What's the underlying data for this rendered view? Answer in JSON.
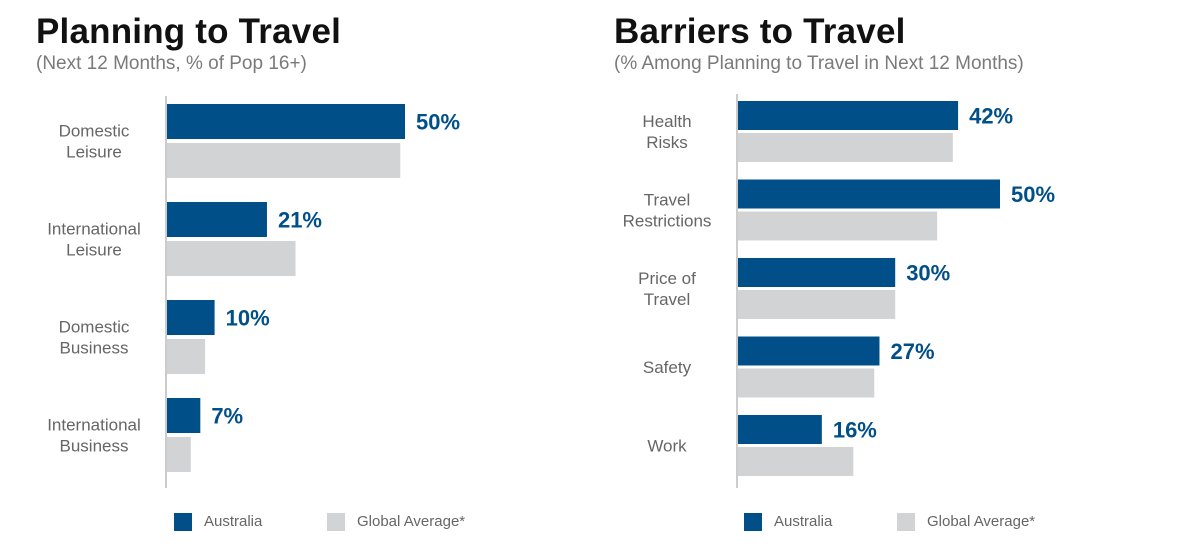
{
  "colors": {
    "australia": "#004f88",
    "global": "#d2d3d5",
    "axis": "#9a9a9a",
    "value_label": "#004f88"
  },
  "chart_data": [
    {
      "type": "bar",
      "orientation": "horizontal",
      "title": "Planning to Travel",
      "subtitle": "(Next 12 Months, % of Pop 16+)",
      "categories": [
        [
          "Domestic",
          "Leisure"
        ],
        [
          "International",
          "Leisure"
        ],
        [
          "Domestic",
          "Business"
        ],
        [
          "International",
          "Business"
        ]
      ],
      "series": [
        {
          "name": "Australia",
          "values": [
            50,
            21,
            10,
            7
          ],
          "labels": [
            "50%",
            "21%",
            "10%",
            "7%"
          ],
          "color": "#004f88"
        },
        {
          "name": "Global Average*",
          "values": [
            49,
            27,
            8,
            5
          ],
          "color": "#d2d3d5"
        }
      ],
      "xlim": [
        0,
        100
      ],
      "grid": false,
      "legend_position": "bottom"
    },
    {
      "type": "bar",
      "orientation": "horizontal",
      "title": "Barriers to Travel",
      "subtitle": "(% Among Planning to Travel in Next 12 Months)",
      "categories": [
        [
          "Health",
          "Risks"
        ],
        [
          "Travel",
          "Restrictions"
        ],
        [
          "Price of",
          "Travel"
        ],
        [
          "Safety"
        ],
        [
          "Work"
        ]
      ],
      "series": [
        {
          "name": "Australia",
          "values": [
            42,
            50,
            30,
            27,
            16
          ],
          "labels": [
            "42%",
            "50%",
            "30%",
            "27%",
            "16%"
          ],
          "color": "#004f88"
        },
        {
          "name": "Global Average*",
          "values": [
            41,
            38,
            30,
            26,
            22
          ],
          "color": "#d2d3d5"
        }
      ],
      "xlim": [
        0,
        100
      ],
      "grid": false,
      "legend_position": "bottom"
    }
  ]
}
